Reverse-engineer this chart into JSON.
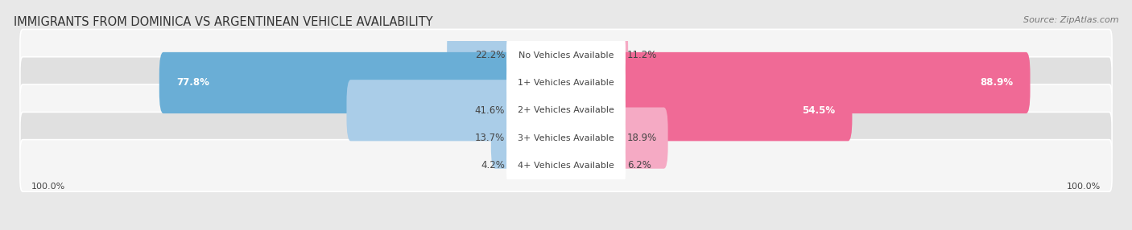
{
  "title": "IMMIGRANTS FROM DOMINICA VS ARGENTINEAN VEHICLE AVAILABILITY",
  "source": "Source: ZipAtlas.com",
  "categories": [
    "No Vehicles Available",
    "1+ Vehicles Available",
    "2+ Vehicles Available",
    "3+ Vehicles Available",
    "4+ Vehicles Available"
  ],
  "dominica_values": [
    22.2,
    77.8,
    41.6,
    13.7,
    4.2
  ],
  "argentinean_values": [
    11.2,
    88.9,
    54.5,
    18.9,
    6.2
  ],
  "dominica_color_strong": "#6aaed6",
  "dominica_color_light": "#aacde8",
  "argentinean_color_strong": "#f06a96",
  "argentinean_color_light": "#f5aac4",
  "bg_color": "#e8e8e8",
  "row_bg_even": "#f5f5f5",
  "row_bg_odd": "#e0e0e0",
  "center_label_bg": "#ffffff",
  "label_color_dark": "#444444",
  "label_color_white": "#ffffff",
  "max_value": 100.0,
  "bar_height": 0.62,
  "title_fontsize": 10.5,
  "value_fontsize": 8.5,
  "cat_fontsize": 8.0,
  "tick_fontsize": 8.0,
  "legend_fontsize": 8.5,
  "source_fontsize": 8.0
}
